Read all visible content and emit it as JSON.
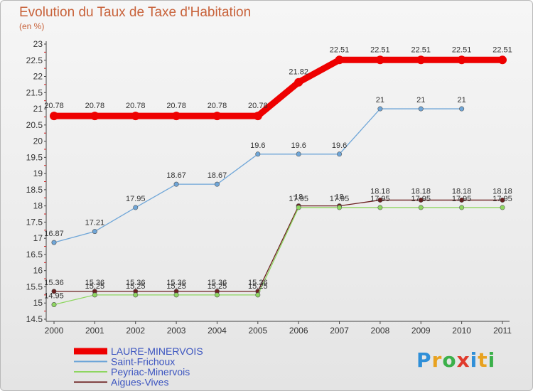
{
  "header": {
    "title": "Evolution du Taux de Taxe d'Habitation",
    "subtitle": "(en %)"
  },
  "brand": {
    "letters": [
      "P",
      "r",
      "o",
      "x",
      "i",
      "t",
      "i"
    ],
    "colors": [
      "#2f8fd8",
      "#e8a220",
      "#3bb04a",
      "#e03a2c",
      "#2f8fd8",
      "#e8a220",
      "#3bb04a"
    ]
  },
  "chart_data": {
    "type": "line",
    "title": "Evolution du Taux de Taxe d'Habitation",
    "ylabel": "(en %)",
    "xlabel": "",
    "x": [
      "2000",
      "2001",
      "2002",
      "2003",
      "2004",
      "2005",
      "2006",
      "2007",
      "2008",
      "2009",
      "2010",
      "2011"
    ],
    "ylim": [
      14.5,
      23
    ],
    "yticks": [
      "14.5",
      "15",
      "15.5",
      "16",
      "16.5",
      "17",
      "17.5",
      "18",
      "18.5",
      "19",
      "19.5",
      "20",
      "20.5",
      "21",
      "21.5",
      "22",
      "22.5",
      "23"
    ],
    "grid": false,
    "legend_position": "bottom-left",
    "series": [
      {
        "name": "Aigues-Vives",
        "color": "#6b1f1f",
        "values": [
          15.36,
          15.36,
          15.36,
          15.36,
          15.36,
          15.36,
          18.0,
          18.0,
          18.18,
          18.18,
          18.18,
          18.18
        ],
        "labels": [
          "15.36",
          "15.36",
          "15.36",
          "15.36",
          "15.36",
          "15.36",
          "18",
          "18",
          "18.18",
          "18.18",
          "18.18",
          "18.18"
        ]
      },
      {
        "name": "Peyriac-Minervois",
        "color": "#8ed660",
        "values": [
          14.95,
          15.25,
          15.25,
          15.25,
          15.25,
          15.25,
          17.95,
          17.95,
          17.95,
          17.95,
          17.95,
          17.95
        ],
        "labels": [
          "14.95",
          "15.25",
          "15.25",
          "15.25",
          "15.25",
          "15.25",
          "17.95",
          "17.95",
          "17.95",
          "17.95",
          "17.95",
          "17.95"
        ]
      },
      {
        "name": "Saint-Frichoux",
        "color": "#6fa6d8",
        "values": [
          16.87,
          17.21,
          17.95,
          18.67,
          18.67,
          19.6,
          19.6,
          19.6,
          21.0,
          21.0,
          21.0,
          null
        ],
        "labels": [
          "16.87",
          "17.21",
          "17.95",
          "18.67",
          "18.67",
          "19.6",
          "19.6",
          "19.6",
          "21",
          "21",
          "21",
          ""
        ]
      },
      {
        "name": "LAURE-MINERVOIS",
        "color": "#ee0000",
        "values": [
          20.78,
          20.78,
          20.78,
          20.78,
          20.78,
          20.78,
          21.82,
          22.51,
          22.51,
          22.51,
          22.51,
          22.51
        ],
        "labels": [
          "20.78",
          "20.78",
          "20.78",
          "20.78",
          "20.78",
          "20.78",
          "21.82",
          "22.51",
          "22.51",
          "22.51",
          "22.51",
          "22.51"
        ]
      }
    ],
    "legend": [
      "LAURE-MINERVOIS",
      "Saint-Frichoux",
      "Peyriac-Minervois",
      "Aigues-Vives"
    ]
  }
}
